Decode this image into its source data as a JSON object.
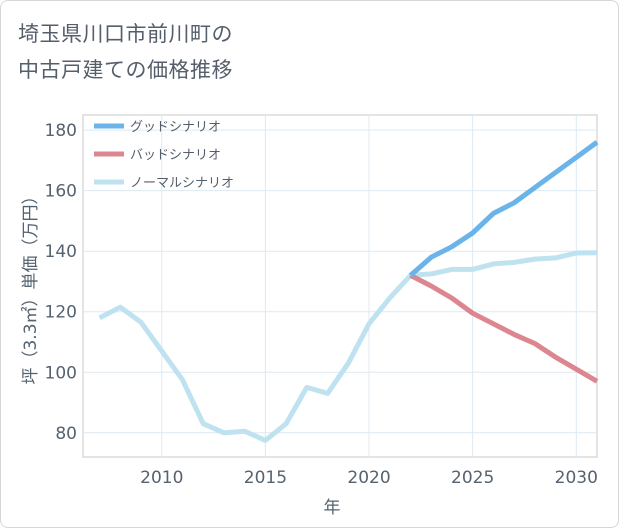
{
  "title_lines": [
    "埼玉県川口市前川町の",
    "中古戸建ての価格推移"
  ],
  "chart_data": {
    "type": "line",
    "title": "埼玉県川口市前川町の中古戸建ての価格推移",
    "xlabel": "年",
    "ylabel": "坪（3.3㎡）単価（万円）",
    "xlim": [
      2006.2,
      2031.0
    ],
    "ylim": [
      72,
      185
    ],
    "x_ticks": [
      2010,
      2015,
      2020,
      2025,
      2030
    ],
    "y_ticks": [
      80,
      100,
      120,
      140,
      160,
      180
    ],
    "grid": true,
    "legend_position": "top-left",
    "series": [
      {
        "name": "グッドシナリオ",
        "color": "#6ab4ea",
        "x": [
          2022,
          2023,
          2024,
          2025,
          2026,
          2027,
          2028,
          2029,
          2030,
          2031
        ],
        "values": [
          132,
          138,
          141.5,
          146,
          152.5,
          156,
          161,
          166,
          171,
          176
        ]
      },
      {
        "name": "バッドシナリオ",
        "color": "#dc8790",
        "x": [
          2022,
          2023,
          2024,
          2025,
          2026,
          2027,
          2028,
          2029,
          2030,
          2031
        ],
        "values": [
          132,
          128.5,
          124.5,
          119.5,
          116,
          112.5,
          109.5,
          105,
          101,
          97
        ]
      },
      {
        "name": "ノーマルシナリオ",
        "color": "#bfe2f0",
        "x": [
          2007,
          2008,
          2009,
          2010,
          2011,
          2012,
          2013,
          2014,
          2015,
          2016,
          2017,
          2018,
          2019,
          2020,
          2021,
          2022,
          2023,
          2024,
          2025,
          2026,
          2027,
          2028,
          2029,
          2030,
          2031
        ],
        "values": [
          118,
          121.5,
          116.5,
          107,
          97.5,
          83,
          80,
          80.5,
          77.5,
          83,
          95,
          93,
          103,
          116,
          124.5,
          132,
          132.5,
          134,
          134,
          135.8,
          136.3,
          137.4,
          137.8,
          139.4,
          139.5
        ]
      }
    ]
  }
}
